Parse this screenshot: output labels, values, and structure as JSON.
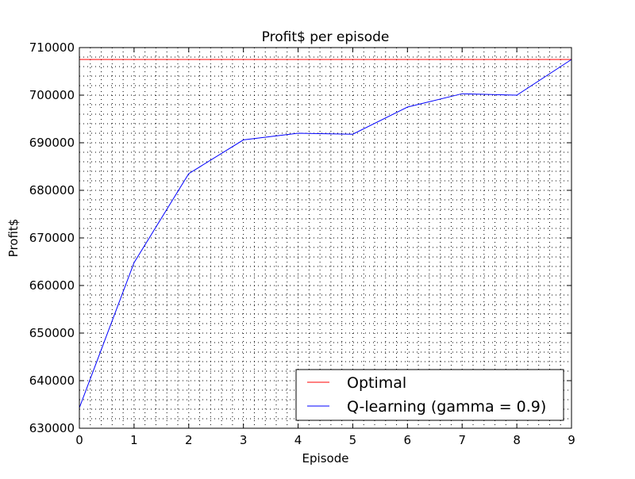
{
  "chart_data": {
    "type": "line",
    "title": "Profit$ per episode",
    "xlabel": "Episode",
    "ylabel": "Profit$",
    "xlim": [
      0,
      9
    ],
    "ylim": [
      630000,
      710000
    ],
    "x_ticks": [
      0,
      1,
      2,
      3,
      4,
      5,
      6,
      7,
      8,
      9
    ],
    "y_ticks": [
      630000,
      640000,
      650000,
      660000,
      670000,
      680000,
      690000,
      700000,
      710000
    ],
    "grid": true,
    "legend_position": "lower-right",
    "series": [
      {
        "name": "Optimal",
        "color": "#ff0000",
        "x": [
          0,
          9
        ],
        "values": [
          707500,
          707500
        ]
      },
      {
        "name": "Q-learning (gamma = 0.9)",
        "color": "#0000ff",
        "x": [
          0,
          1,
          2,
          3,
          4,
          5,
          6,
          7,
          8,
          9
        ],
        "values": [
          634300,
          664800,
          683500,
          690600,
          692000,
          691800,
          697500,
          700300,
          700000,
          707500
        ]
      }
    ]
  }
}
